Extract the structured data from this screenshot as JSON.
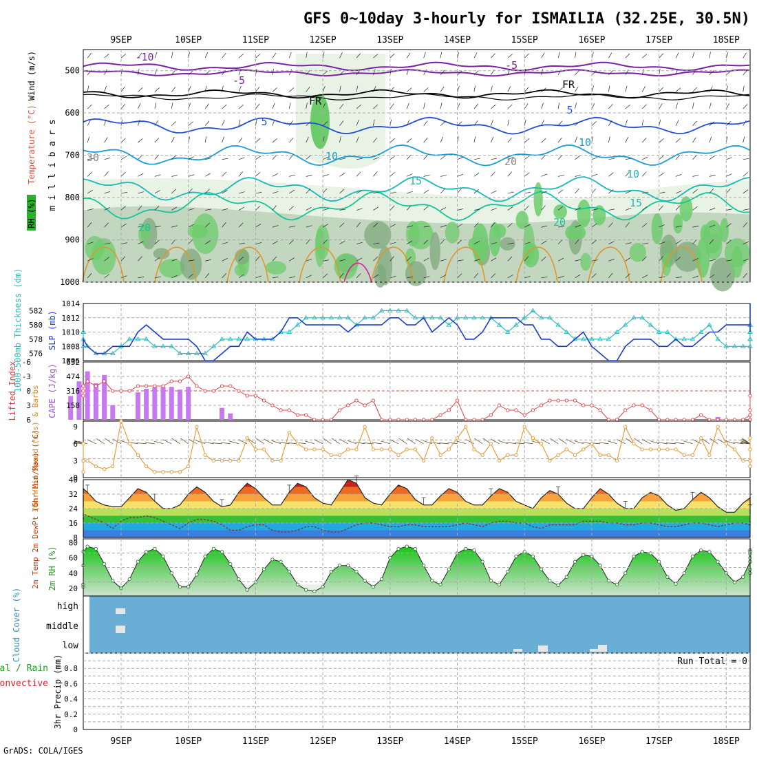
{
  "title": "GFS 0~10day 3-hourly for ISMAILIA (32.25E, 30.5N)",
  "footer": "GrADS: COLA/IGES",
  "date_labels": [
    "9SEP",
    "10SEP",
    "11SEP",
    "12SEP",
    "13SEP",
    "14SEP",
    "15SEP",
    "16SEP",
    "17SEP",
    "18SEP"
  ],
  "colors": {
    "rh_light": "#e8f3e6",
    "rh_mid": "#c3d6c0",
    "rh_dark": "#7fa87d",
    "rh_green": "#6ccc6c",
    "temp_purple": "#7a1fa6",
    "temp_black": "#000000",
    "temp_blue": "#1f4fd6",
    "temp_lightblue": "#1a9ad6",
    "temp_cyan": "#19b8b8",
    "temp_teal": "#14c49a",
    "temp_orange": "#e0962a",
    "temp_magenta": "#d81f9a",
    "slp_line": "#1a3ccc",
    "thick_line": "#2bbcc0",
    "cape_bar": "#c679f0",
    "li_line": "#e04040",
    "wind_line": "#e8962a",
    "rh2m_fill": "#1cc41c",
    "cloud_bg": "#6aaed6",
    "cloud_bar": "#e6e6e6"
  },
  "chart_data": [
    {
      "type": "heatmap",
      "id": "upper_air",
      "ylabel": "m i l l i b a r s",
      "legend_labels": [
        "Wind (m/s)",
        "Temperature (°C)",
        "RH (%)"
      ],
      "y_ticks": [
        "500",
        "600",
        "700",
        "800",
        "900",
        "1000"
      ],
      "ylim": [
        450,
        1000
      ],
      "temperature_labels": [
        "-10",
        "-5",
        "FR",
        "5",
        "10",
        "15",
        "20",
        "FR",
        "-5",
        "5",
        "10",
        "15",
        "10",
        "20",
        "30",
        "20"
      ]
    },
    {
      "type": "line",
      "id": "slp_thickness",
      "ylabel_left": "1000-500mb Thickness (dm)",
      "ylabel_right": "SLP (mb)",
      "left_ticks": [
        "582",
        "580",
        "578",
        "576"
      ],
      "right_ticks": [
        "1014",
        "1012",
        "1010",
        "1008",
        "1006"
      ],
      "slp_ylim": [
        1006,
        1014
      ],
      "thick_ylim": [
        575,
        583
      ],
      "series": [
        {
          "name": "SLP (mb)",
          "values": [
            1008,
            1008,
            1009,
            1009,
            1008,
            1007,
            1007,
            1008,
            1008,
            1008,
            1010,
            1011,
            1010,
            1009,
            1009,
            1009,
            1009,
            1008,
            1006,
            1006,
            1007,
            1008,
            1008,
            1010,
            1009,
            1009,
            1009,
            1010,
            1012,
            1012,
            1011,
            1011,
            1011,
            1011,
            1011,
            1010,
            1011,
            1011,
            1011,
            1011,
            1012,
            1012,
            1011,
            1011,
            1012,
            1010,
            1011,
            1012,
            1011,
            1009,
            1009,
            1010,
            1012,
            1012,
            1012,
            1012,
            1011,
            1011,
            1009,
            1009,
            1008,
            1008,
            1009,
            1010,
            1008,
            1007,
            1006,
            1006,
            1008,
            1009,
            1009,
            1009,
            1008,
            1008,
            1009,
            1008,
            1008,
            1009,
            1010,
            1010,
            1011,
            1011,
            1011,
            1011,
            1010,
            1011,
            1011,
            1012,
            1012,
            1013,
            1013,
            1013,
            1014
          ]
        },
        {
          "name": "1000-500mb Thickness (dm)",
          "values": [
            579,
            579,
            578,
            577,
            577,
            576,
            576,
            576,
            577,
            578,
            578,
            578,
            577,
            577,
            577,
            576,
            576,
            576,
            576,
            577,
            578,
            578,
            578,
            578,
            578,
            578,
            578,
            579,
            579,
            580,
            581,
            581,
            581,
            581,
            581,
            581,
            580,
            581,
            581,
            582,
            582,
            582,
            582,
            581,
            581,
            581,
            581,
            580,
            581,
            581,
            581,
            581,
            581,
            580,
            579,
            580,
            581,
            582,
            581,
            581,
            580,
            579,
            578,
            578,
            578,
            578,
            578,
            579,
            580,
            581,
            581,
            580,
            579,
            579,
            578,
            578,
            578,
            579,
            580,
            578,
            577,
            577,
            577,
            577,
            578,
            578,
            578,
            579,
            580,
            580,
            580,
            579,
            579
          ]
        }
      ]
    },
    {
      "type": "bar",
      "id": "cape_li",
      "ylabel_left": "Lifted Index",
      "ylabel_right": "CAPE (J/kg)",
      "left_ticks": [
        "-6",
        "-3",
        "0",
        "3",
        "6"
      ],
      "right_ticks": [
        "632",
        "474",
        "316",
        "158"
      ],
      "cape_ylim": [
        0,
        632
      ],
      "li_ylim": [
        -6,
        6
      ],
      "series": [
        {
          "name": "CAPE (J/kg)",
          "values": [
            0,
            0,
            260,
            420,
            530,
            400,
            490,
            160,
            0,
            0,
            300,
            340,
            360,
            360,
            360,
            330,
            360,
            0,
            0,
            0,
            130,
            70,
            0,
            0,
            0,
            0,
            0,
            0,
            0,
            0,
            0,
            0,
            0,
            0,
            0,
            0,
            0,
            0,
            0,
            0,
            0,
            0,
            0,
            0,
            0,
            0,
            0,
            0,
            0,
            0,
            0,
            0,
            0,
            0,
            0,
            0,
            0,
            0,
            0,
            0,
            0,
            0,
            0,
            0,
            0,
            0,
            0,
            0,
            0,
            0,
            0,
            0,
            0,
            0,
            0,
            0,
            0,
            0,
            0,
            30,
            0,
            0,
            0,
            0,
            0,
            0,
            0,
            0,
            0,
            0,
            0,
            0,
            0
          ]
        },
        {
          "name": "Lifted Index",
          "values": [
            1,
            0,
            -1,
            -1,
            -2,
            -1,
            -2,
            0,
            0,
            0,
            -1,
            -1,
            -1,
            -1,
            -2,
            -2,
            -3,
            -1,
            0,
            0,
            -1,
            -1,
            0,
            1,
            1,
            2,
            3,
            4,
            4,
            5,
            5,
            6,
            6,
            6,
            4,
            3,
            2,
            3,
            2,
            6,
            6,
            6,
            6,
            6,
            6,
            6,
            5,
            4,
            2,
            6,
            6,
            6,
            5,
            3,
            4,
            4,
            5,
            4,
            3,
            2,
            2,
            2,
            2,
            3,
            3,
            4,
            6,
            6,
            4,
            3,
            3,
            4,
            6,
            6,
            6,
            6,
            6,
            5,
            6,
            6,
            6,
            6,
            6,
            5,
            1,
            4,
            6,
            6,
            6,
            6,
            6,
            6,
            5
          ]
        }
      ]
    },
    {
      "type": "line",
      "id": "wind10m",
      "ylabel": "10m Wind Speed (m/s) & Barbs",
      "y_ticks": [
        "9",
        "6",
        "3",
        "0"
      ],
      "ylim": [
        0,
        10
      ],
      "series": [
        {
          "name": "10m Wind Speed",
          "values": [
            1,
            6,
            3,
            3,
            3,
            2,
            1.5,
            2,
            10,
            6,
            4,
            2,
            1,
            1,
            1,
            1,
            2,
            9,
            4,
            3,
            3,
            3,
            3,
            7,
            5,
            5,
            3,
            3,
            8,
            6,
            5,
            5,
            5,
            4,
            4,
            5,
            5,
            9,
            5,
            5,
            5,
            4,
            5,
            5,
            3,
            7,
            4,
            5,
            7,
            9,
            5,
            4,
            6,
            3,
            4,
            4,
            9,
            7,
            6,
            3,
            4,
            5,
            4,
            5,
            6,
            4,
            4,
            3,
            9,
            6,
            5,
            5,
            5,
            5,
            5,
            4,
            4,
            7,
            4,
            9,
            6,
            5,
            3,
            3,
            2,
            3,
            5,
            7,
            5,
            3,
            2,
            2,
            3
          ]
        }
      ]
    },
    {
      "type": "area",
      "id": "temp2m",
      "ylabel": "2m Temp 2m DewPt (6hr Min/Max) (°C)",
      "y_ticks": [
        "40",
        "32",
        "24",
        "16",
        "8"
      ],
      "ylim": [
        8,
        40
      ],
      "series": [
        {
          "name": "2m Temp",
          "values": [
            24,
            26,
            31,
            35,
            33,
            28,
            26,
            25,
            25,
            30,
            35,
            33,
            28,
            24,
            24,
            26,
            32,
            36,
            33,
            28,
            25,
            26,
            33,
            38,
            35,
            30,
            26,
            26,
            33,
            38,
            36,
            30,
            27,
            26,
            33,
            40,
            38,
            30,
            27,
            26,
            32,
            37,
            35,
            29,
            26,
            26,
            31,
            35,
            33,
            28,
            26,
            26,
            31,
            35,
            33,
            28,
            26,
            24,
            30,
            34,
            32,
            27,
            24,
            24,
            30,
            35,
            32,
            27,
            24,
            24,
            30,
            33,
            31,
            26,
            23,
            24,
            29,
            33,
            30,
            25,
            22,
            22,
            27,
            30,
            28,
            24,
            21,
            21,
            24,
            25,
            23,
            21,
            22
          ]
        },
        {
          "name": "2m DewPt",
          "values": [
            18,
            20,
            21,
            21,
            20,
            18,
            16,
            13,
            17,
            19,
            19,
            20,
            19,
            17,
            15,
            13,
            16,
            18,
            18,
            17,
            15,
            12,
            12,
            14,
            15,
            15,
            12,
            11,
            11,
            12,
            14,
            14,
            12,
            11,
            11,
            13,
            15,
            16,
            16,
            15,
            14,
            14,
            15,
            15,
            14,
            14,
            14,
            14,
            15,
            16,
            15,
            14,
            16,
            17,
            17,
            16,
            16,
            14,
            13,
            15,
            15,
            15,
            15,
            17,
            17,
            17,
            16,
            16,
            15,
            15,
            16,
            16,
            15,
            14,
            14,
            15,
            16,
            16,
            15,
            14,
            15,
            16,
            16,
            15,
            15,
            16,
            17,
            17,
            16,
            16,
            17,
            17,
            17
          ]
        }
      ]
    },
    {
      "type": "area",
      "id": "rh2m",
      "ylabel": "2m RH (%)",
      "y_ticks": [
        "80",
        "60",
        "40",
        "20"
      ],
      "ylim": [
        10,
        85
      ],
      "series": [
        {
          "name": "2m RH",
          "values": [
            22,
            25,
            50,
            68,
            75,
            72,
            52,
            30,
            20,
            32,
            55,
            68,
            72,
            62,
            40,
            22,
            22,
            38,
            62,
            72,
            68,
            52,
            32,
            18,
            28,
            45,
            58,
            55,
            42,
            25,
            18,
            16,
            22,
            42,
            50,
            50,
            42,
            30,
            22,
            32,
            60,
            72,
            75,
            72,
            50,
            30,
            25,
            45,
            66,
            72,
            70,
            55,
            30,
            25,
            42,
            62,
            68,
            62,
            45,
            30,
            24,
            35,
            55,
            64,
            62,
            50,
            30,
            25,
            40,
            62,
            68,
            66,
            55,
            35,
            26,
            40,
            62,
            70,
            68,
            55,
            40,
            28,
            35,
            55,
            66,
            70,
            65,
            55,
            40,
            45,
            60,
            70,
            68
          ]
        }
      ]
    },
    {
      "type": "bar",
      "id": "cloud",
      "ylabel": "Cloud Cover (%)",
      "levels": [
        "high",
        "middle",
        "low"
      ]
    },
    {
      "type": "line",
      "id": "precip",
      "ylabel": "3hr Precip (mm)",
      "legend_labels": [
        "Total / Rain",
        "Convective"
      ],
      "run_total": "Run Total = 0",
      "y_ticks": [
        "0.8",
        "0.6",
        "0.4",
        "0.2",
        "0"
      ],
      "ylim": [
        0,
        1
      ]
    }
  ]
}
